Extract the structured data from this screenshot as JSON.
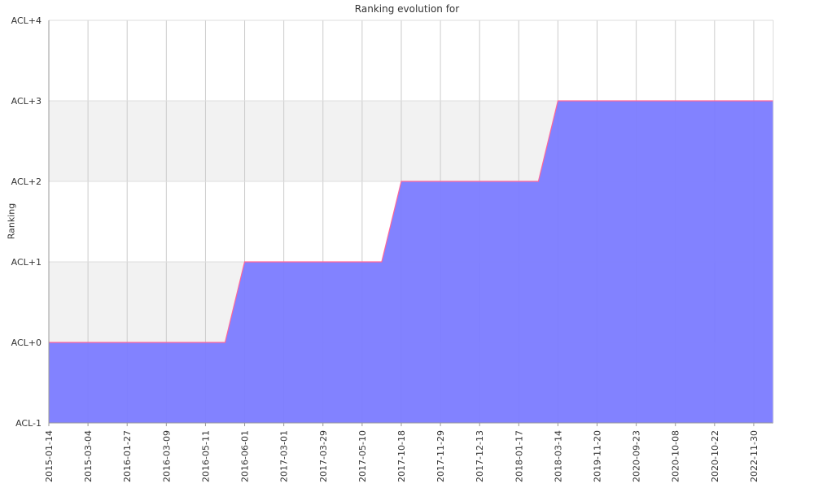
{
  "chart_data": {
    "type": "area",
    "title": "Ranking evolution for",
    "xlabel": "",
    "ylabel": "Ranking",
    "x": [
      "2015-01-14",
      "2015-03-04",
      "2016-01-27",
      "2016-03-09",
      "2016-05-11",
      "2016-06-01",
      "2017-03-01",
      "2017-03-29",
      "2017-05-10",
      "2017-10-18",
      "2017-11-29",
      "2017-12-13",
      "2018-01-17",
      "2018-03-14",
      "2019-11-20",
      "2020-09-23",
      "2020-10-08",
      "2020-10-22",
      "2022-11-30"
    ],
    "y_tick_labels": [
      "ACL-1",
      "ACL+0",
      "ACL+1",
      "ACL+2",
      "ACL+3",
      "ACL+4"
    ],
    "ylim": [
      -1,
      4
    ],
    "series": [
      {
        "values": [
          0,
          0,
          0,
          0,
          0,
          1,
          1,
          1,
          1,
          2,
          2,
          2,
          2,
          3,
          3,
          3,
          3,
          3,
          3
        ]
      }
    ],
    "grid": true,
    "alternating_bands": true,
    "colors": {
      "fill": "#7b7bff",
      "line": "#ff6699",
      "grid": "#cccccc",
      "band": "#f2f2f2"
    }
  }
}
